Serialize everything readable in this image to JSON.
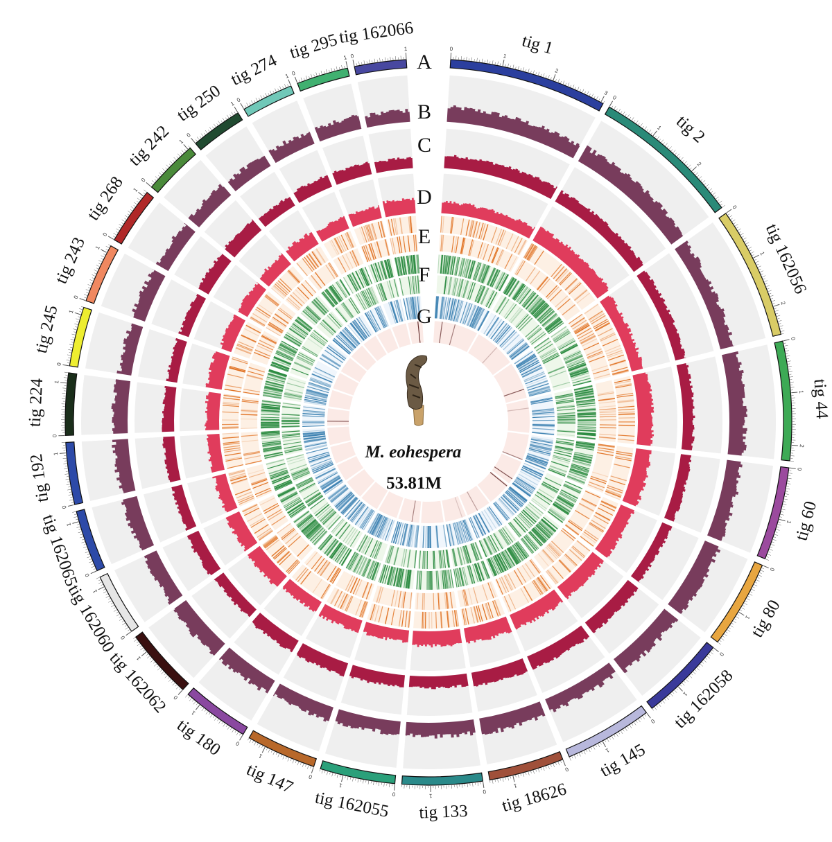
{
  "center": {
    "species": "M. eohespera",
    "genome_size": "53.81M"
  },
  "track_labels": [
    "A",
    "B",
    "C",
    "D",
    "E",
    "F",
    "G"
  ],
  "colors": {
    "track_B": "#783c5c",
    "track_C": "#a81c44",
    "track_D": "#e03c5c",
    "track_E": "#e07020",
    "track_E_bg": "#fdf0e4",
    "track_F": "#2a8a40",
    "track_F_bg": "#eef7ea",
    "track_G": "#3a80b0",
    "track_G_bg": "#f0f6fc",
    "inner_ring_bg": "#fbeae6",
    "inner_ring_mark": "#602828",
    "histogram_bg": "#efefef"
  },
  "contigs": [
    {
      "name": "tig 1",
      "length_mb": 3.05,
      "color": "#2b3f9e"
    },
    {
      "name": "tig 2",
      "length_mb": 2.9,
      "color": "#2a8a78"
    },
    {
      "name": "tig 162056",
      "length_mb": 2.55,
      "color": "#d9cc66"
    },
    {
      "name": "tig 44",
      "length_mb": 2.3,
      "color": "#3daa55"
    },
    {
      "name": "tig 60",
      "length_mb": 1.8,
      "color": "#9b4a9e"
    },
    {
      "name": "tig 80",
      "length_mb": 1.7,
      "color": "#e8a640"
    },
    {
      "name": "tig 162058",
      "length_mb": 1.65,
      "color": "#3a3a9a"
    },
    {
      "name": "tig 145",
      "length_mb": 1.7,
      "color": "#b8b8dc"
    },
    {
      "name": "tig 18626",
      "length_mb": 1.45,
      "color": "#a0503a"
    },
    {
      "name": "tig 133",
      "length_mb": 1.55,
      "color": "#2a8a8a"
    },
    {
      "name": "tig 162055",
      "length_mb": 1.45,
      "color": "#2aa07a"
    },
    {
      "name": "tig 147",
      "length_mb": 1.35,
      "color": "#b8682a"
    },
    {
      "name": "tig 180",
      "length_mb": 1.3,
      "color": "#8a48a0"
    },
    {
      "name": "tig 162062",
      "length_mb": 1.35,
      "color": "#3a1010"
    },
    {
      "name": "tig 162060",
      "length_mb": 1.2,
      "color": "#e6e6e6"
    },
    {
      "name": "tig 162065",
      "length_mb": 1.2,
      "color": "#2d4aa8"
    },
    {
      "name": "tig 192",
      "length_mb": 1.2,
      "color": "#2d4aa8"
    },
    {
      "name": "tig 224",
      "length_mb": 1.2,
      "color": "#1a2e1a"
    },
    {
      "name": "tig 245",
      "length_mb": 1.15,
      "color": "#eeee30"
    },
    {
      "name": "tig 243",
      "length_mb": 1.15,
      "color": "#f08860"
    },
    {
      "name": "tig 268",
      "length_mb": 1.1,
      "color": "#b02828"
    },
    {
      "name": "tig 242",
      "length_mb": 1.05,
      "color": "#4a8a3a"
    },
    {
      "name": "tig 250",
      "length_mb": 1.0,
      "color": "#204a30"
    },
    {
      "name": "tig 274",
      "length_mb": 1.0,
      "color": "#70c8b8"
    },
    {
      "name": "tig 295",
      "length_mb": 1.0,
      "color": "#40b070"
    },
    {
      "name": "tig 162066",
      "length_mb": 1.0,
      "color": "#4848a0"
    }
  ]
}
